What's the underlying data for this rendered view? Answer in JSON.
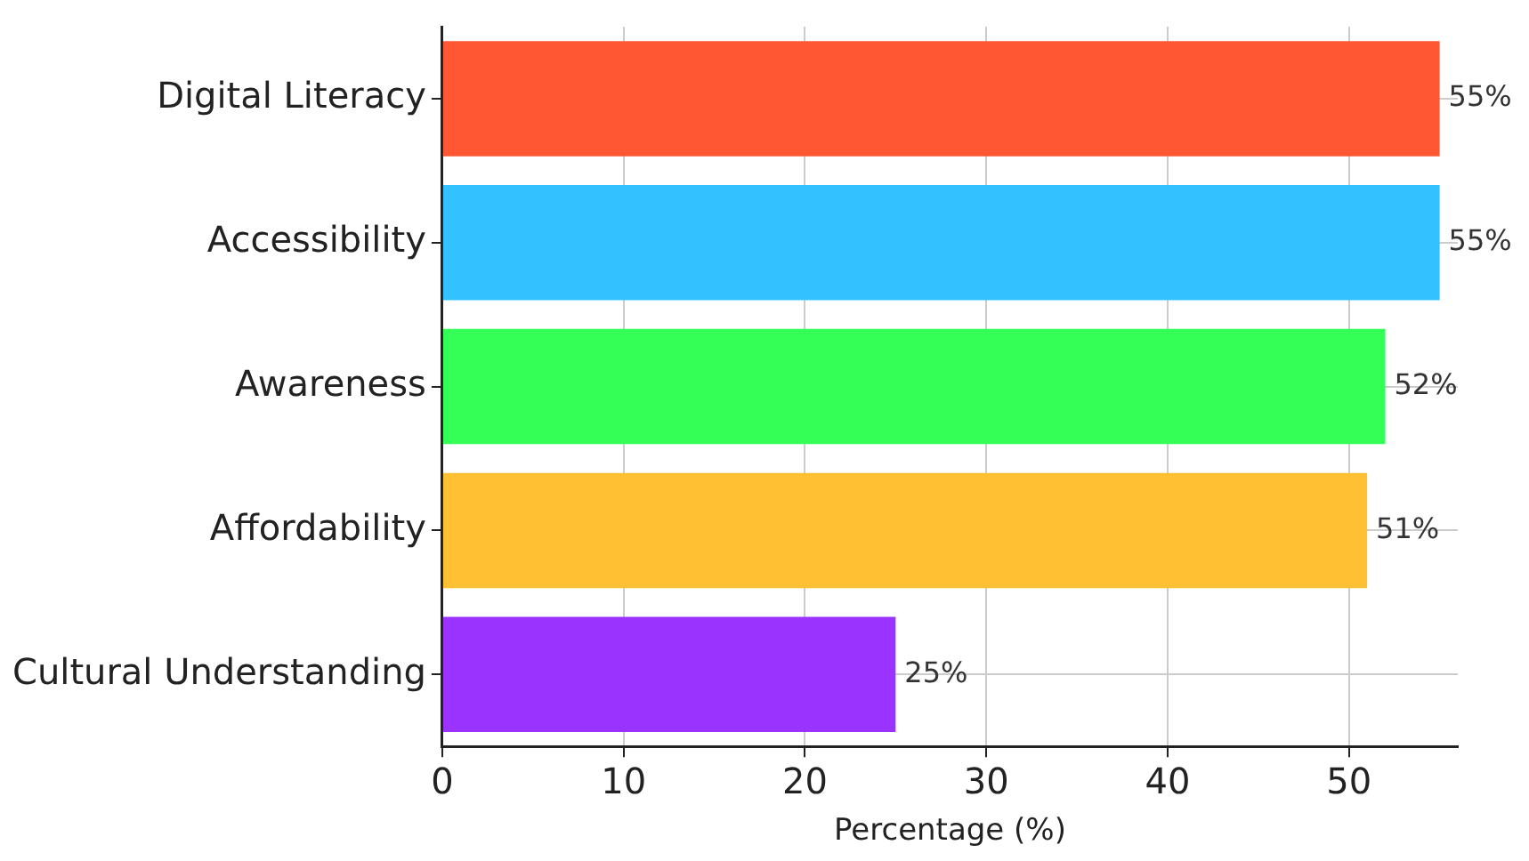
{
  "chart_data": {
    "type": "bar",
    "orientation": "horizontal",
    "xlabel": "Percentage (%)",
    "categories": [
      "Digital Literacy",
      "Accessibility",
      "Awareness",
      "Affordability",
      "Cultural Understanding"
    ],
    "values": [
      55,
      55,
      52,
      51,
      25
    ],
    "colors": [
      "#ff5733",
      "#33c1ff",
      "#33ff57",
      "#ffc133",
      "#9b33ff"
    ],
    "value_labels": [
      "55%",
      "55%",
      "52%",
      "51%",
      "25%"
    ],
    "xlim": [
      0,
      56
    ],
    "xticks": [
      0,
      10,
      20,
      30,
      40,
      50
    ],
    "grid": true,
    "legend": false
  }
}
